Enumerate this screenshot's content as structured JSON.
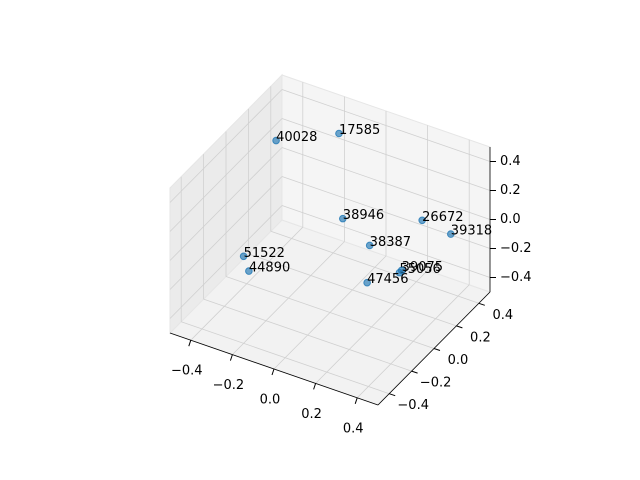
{
  "chart_data": {
    "type": "scatter3d",
    "labels": [
      "17585",
      "40028",
      "38946",
      "26672",
      "39318",
      "38387",
      "51522",
      "44890",
      "55056",
      "39075",
      "47456"
    ],
    "x": [
      -0.14,
      -0.34,
      -0.03,
      0.26,
      0.36,
      0.11,
      -0.2,
      -0.18,
      0.21,
      0.21,
      0.13
    ],
    "y": [
      0.34,
      0.15,
      0.17,
      0.34,
      0.41,
      0.15,
      -0.4,
      -0.39,
      0.23,
      0.25,
      0.09
    ],
    "z": [
      0.4,
      0.4,
      0,
      0,
      -0.1,
      -0.1,
      0.1,
      0,
      -0.3,
      -0.3,
      -0.3
    ],
    "color": "#1f77b4",
    "xlim": [
      -0.5,
      0.5
    ],
    "ylim": [
      -0.5,
      0.5
    ],
    "zlim": [
      -0.5,
      0.5
    ],
    "xticks": [
      {
        "value": -0.4,
        "label": "−0.4"
      },
      {
        "value": -0.2,
        "label": "−0.2"
      },
      {
        "value": 0,
        "label": "0.0"
      },
      0.2,
      0.4
    ],
    "yticks": [
      {
        "value": -0.4,
        "label": "−0.4"
      },
      {
        "value": -0.2,
        "label": "−0.2"
      },
      {
        "value": 0,
        "label": "0.0"
      },
      0.2,
      0.4
    ],
    "zticks": [
      {
        "value": -0.4,
        "label": "−0.4"
      },
      {
        "value": -0.2,
        "label": "−0.2"
      },
      {
        "value": 0,
        "label": "0.0"
      },
      0.2,
      0.4
    ],
    "grid": true
  }
}
